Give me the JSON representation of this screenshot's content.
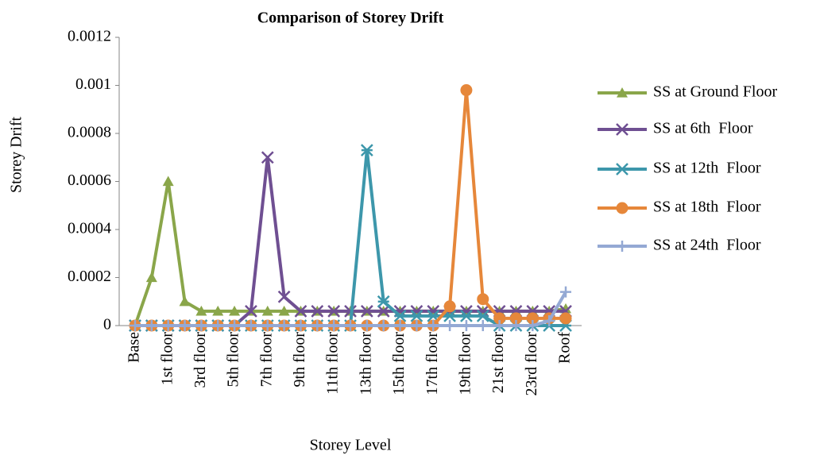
{
  "chart_data": {
    "type": "line",
    "title": "Comparison of Storey Drift",
    "x_label": "Storey Level",
    "y_label": "Storey Drift",
    "categories": [
      "Base",
      null,
      "1st floor",
      null,
      "3rd floor",
      null,
      "5th floor",
      null,
      "7th floor",
      null,
      "9th floor",
      null,
      "11th floor",
      null,
      "13th floor",
      null,
      "15th floor",
      null,
      "17th floor",
      null,
      "19th floor",
      null,
      "21st floor",
      null,
      "23rd floor",
      null,
      "Roof"
    ],
    "ylim": [
      0,
      0.0012
    ],
    "yticks": [
      0,
      0.0002,
      0.0004,
      0.0006,
      0.0008,
      0.001,
      0.0012
    ],
    "grid": false,
    "legend": "right",
    "series": [
      {
        "name": "SS at Ground Floor",
        "color": "#8aa64a",
        "marker": "triangle",
        "values": [
          0,
          0.0002,
          0.0006,
          0.0001,
          6e-05,
          6e-05,
          6e-05,
          6e-05,
          6e-05,
          6e-05,
          6e-05,
          6e-05,
          6e-05,
          6e-05,
          6e-05,
          6e-05,
          6e-05,
          6e-05,
          6e-05,
          6e-05,
          6e-05,
          6e-05,
          6e-05,
          6e-05,
          6e-05,
          6e-05,
          7e-05
        ]
      },
      {
        "name": "SS at 6th  Floor",
        "color": "#6f4f92",
        "marker": "x",
        "values": [
          0,
          0,
          0,
          0,
          0,
          0,
          0,
          6e-05,
          0.0007,
          0.00012,
          6e-05,
          6e-05,
          6e-05,
          6e-05,
          6e-05,
          6e-05,
          6e-05,
          6e-05,
          6e-05,
          6e-05,
          6e-05,
          6e-05,
          6e-05,
          6e-05,
          6e-05,
          6e-05,
          6e-05
        ]
      },
      {
        "name": "SS at 12th  Floor",
        "color": "#3d97ab",
        "marker": "star",
        "values": [
          0,
          0,
          0,
          0,
          0,
          0,
          0,
          0,
          0,
          0,
          0,
          0,
          0,
          0,
          0.00073,
          0.0001,
          4e-05,
          4e-05,
          4e-05,
          4e-05,
          4e-05,
          4e-05,
          0,
          0,
          0,
          0,
          0
        ]
      },
      {
        "name": "SS at 18th  Floor",
        "color": "#e6873a",
        "marker": "circle",
        "values": [
          0,
          0,
          0,
          0,
          0,
          0,
          0,
          0,
          0,
          0,
          0,
          0,
          0,
          0,
          0,
          0,
          0,
          0,
          0,
          8e-05,
          0.00098,
          0.00011,
          3e-05,
          3e-05,
          3e-05,
          3e-05,
          3e-05
        ]
      },
      {
        "name": "SS at 24th  Floor",
        "color": "#94a9d4",
        "marker": "plus",
        "values": [
          0,
          0,
          0,
          0,
          0,
          0,
          0,
          0,
          0,
          0,
          0,
          0,
          0,
          0,
          0,
          0,
          0,
          0,
          0,
          0,
          0,
          0,
          0,
          0,
          0,
          2e-05,
          0.00014
        ]
      }
    ]
  }
}
